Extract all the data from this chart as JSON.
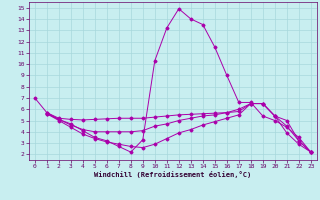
{
  "bg_color": "#c8eef0",
  "grid_color": "#a8d8dc",
  "line_color": "#aa00aa",
  "xlabel": "Windchill (Refroidissement éolien,°C)",
  "xlim": [
    -0.5,
    23.5
  ],
  "ylim": [
    1.5,
    15.5
  ],
  "xticks": [
    0,
    1,
    2,
    3,
    4,
    5,
    6,
    7,
    8,
    9,
    10,
    11,
    12,
    13,
    14,
    15,
    16,
    17,
    18,
    19,
    20,
    21,
    22,
    23
  ],
  "yticks": [
    2,
    3,
    4,
    5,
    6,
    7,
    8,
    9,
    10,
    11,
    12,
    13,
    14,
    15
  ],
  "curve1_x": [
    0,
    1,
    2,
    3,
    4,
    5,
    6,
    7,
    8,
    9,
    10,
    11,
    12,
    13,
    14,
    15,
    16,
    17,
    18,
    19,
    20,
    21,
    22,
    23
  ],
  "curve1_y": [
    7.0,
    5.7,
    5.1,
    4.7,
    4.1,
    3.5,
    3.2,
    2.7,
    2.2,
    3.3,
    10.3,
    13.2,
    14.9,
    14.0,
    13.5,
    11.5,
    9.0,
    6.6,
    6.6,
    5.4,
    5.0,
    4.4,
    3.5,
    2.2
  ],
  "curve2_x": [
    1,
    2,
    3,
    4,
    5,
    6,
    7,
    8,
    9,
    10,
    11,
    12,
    13,
    14,
    15,
    16,
    17,
    18,
    19,
    20,
    21,
    22,
    23
  ],
  "curve2_y": [
    5.7,
    5.2,
    5.1,
    5.05,
    5.1,
    5.15,
    5.2,
    5.2,
    5.2,
    5.3,
    5.4,
    5.5,
    5.55,
    5.6,
    5.65,
    5.7,
    5.8,
    6.5,
    6.5,
    5.4,
    5.0,
    3.2,
    2.2
  ],
  "curve3_x": [
    1,
    2,
    3,
    4,
    5,
    6,
    7,
    8,
    9,
    10,
    11,
    12,
    13,
    14,
    15,
    16,
    17,
    18,
    19,
    20,
    21,
    22,
    23
  ],
  "curve3_y": [
    5.6,
    5.1,
    4.6,
    4.2,
    4.0,
    4.0,
    4.0,
    4.0,
    4.1,
    4.5,
    4.7,
    5.0,
    5.2,
    5.4,
    5.5,
    5.7,
    6.0,
    6.5,
    6.5,
    5.4,
    4.5,
    3.2,
    2.2
  ],
  "curve4_x": [
    1,
    2,
    3,
    4,
    5,
    6,
    7,
    8,
    9,
    10,
    11,
    12,
    13,
    14,
    15,
    16,
    17,
    18,
    19,
    20,
    21,
    22,
    23
  ],
  "curve4_y": [
    5.6,
    5.0,
    4.4,
    3.8,
    3.4,
    3.1,
    2.9,
    2.7,
    2.6,
    2.9,
    3.4,
    3.9,
    4.2,
    4.6,
    4.9,
    5.2,
    5.5,
    6.5,
    6.5,
    5.4,
    3.9,
    2.9,
    2.2
  ]
}
